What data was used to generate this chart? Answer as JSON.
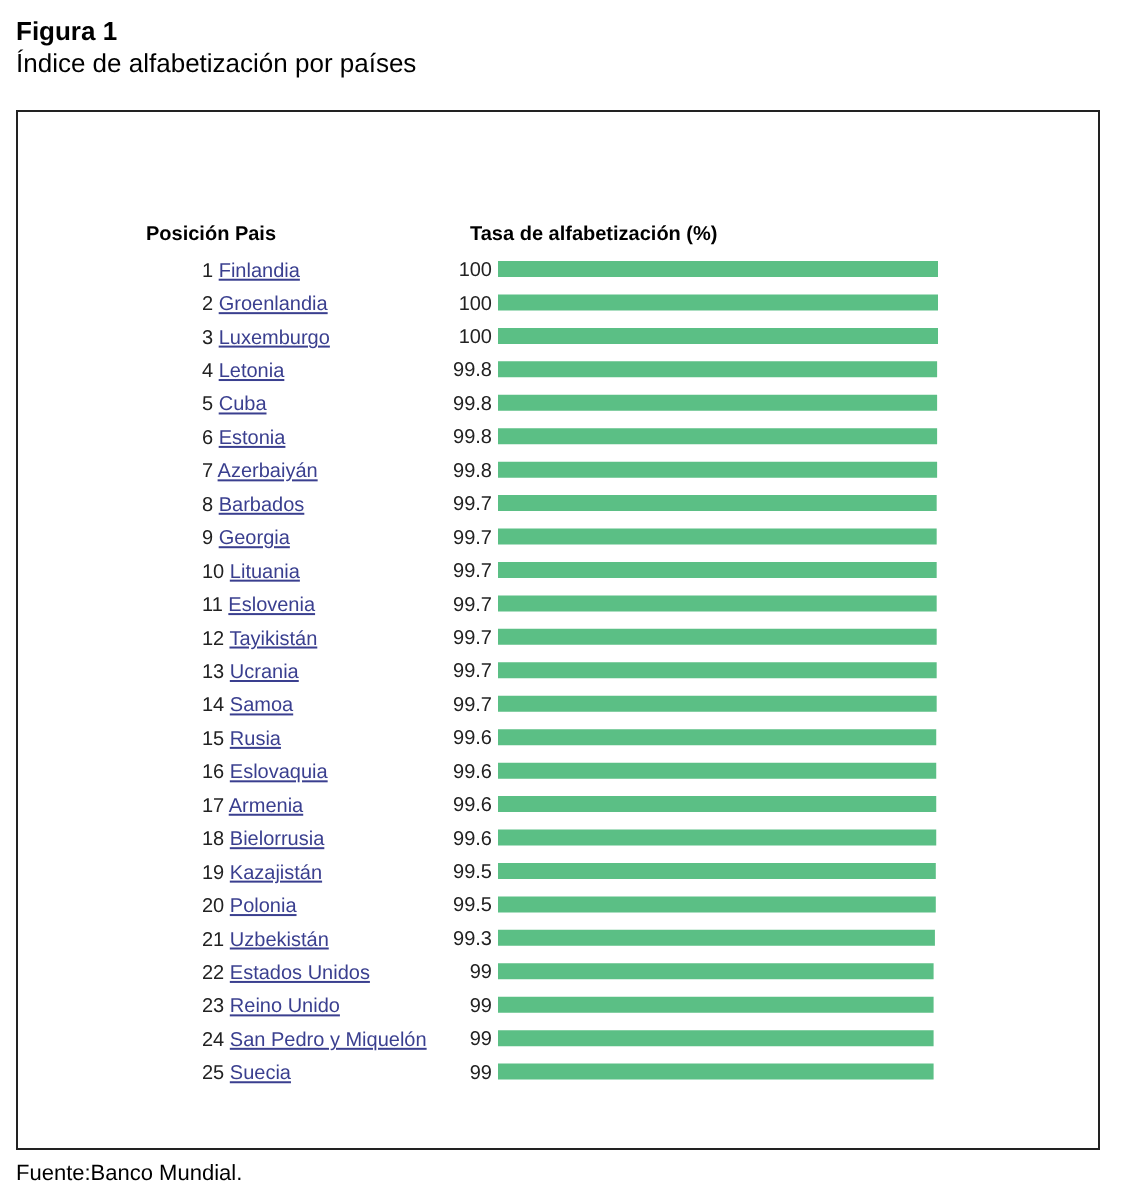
{
  "chart_data": {
    "type": "bar",
    "orientation": "horizontal",
    "title": "Figura 1",
    "subtitle": "Índice de alfabetización por países",
    "ylabel": "Posición Pais",
    "xlabel": "Tasa de alfabetización (%)",
    "categories": [
      "1 Finlandia",
      "2 Groenlandia",
      "3 Luxemburgo",
      "4 Letonia",
      "5 Cuba",
      "6 Estonia",
      "7 Azerbaiyán",
      "8 Barbados",
      "9 Georgia",
      "10 Lituania",
      "11 Eslovenia",
      "12 Tayikistán",
      "13 Ucrania",
      "14 Samoa",
      "15 Rusia",
      "16 Eslovaquia",
      "17 Armenia",
      "18 Bielorrusia",
      "19 Kazajistán",
      "20 Polonia",
      "21 Uzbekistán",
      "22 Estados Unidos",
      "23 Reino Unido",
      "24 San Pedro y Miquelón",
      "25 Suecia"
    ],
    "values": [
      100,
      100,
      100,
      99.8,
      99.8,
      99.8,
      99.8,
      99.7,
      99.7,
      99.7,
      99.7,
      99.7,
      99.7,
      99.7,
      99.6,
      99.6,
      99.6,
      99.6,
      99.5,
      99.5,
      99.3,
      99,
      99,
      99,
      99
    ],
    "color": "#5bbf85",
    "xlim": [
      0,
      100
    ],
    "data_labels": true,
    "tick_labels": "y",
    "annotations": [
      "Fuente:Banco Mundial."
    ]
  }
}
